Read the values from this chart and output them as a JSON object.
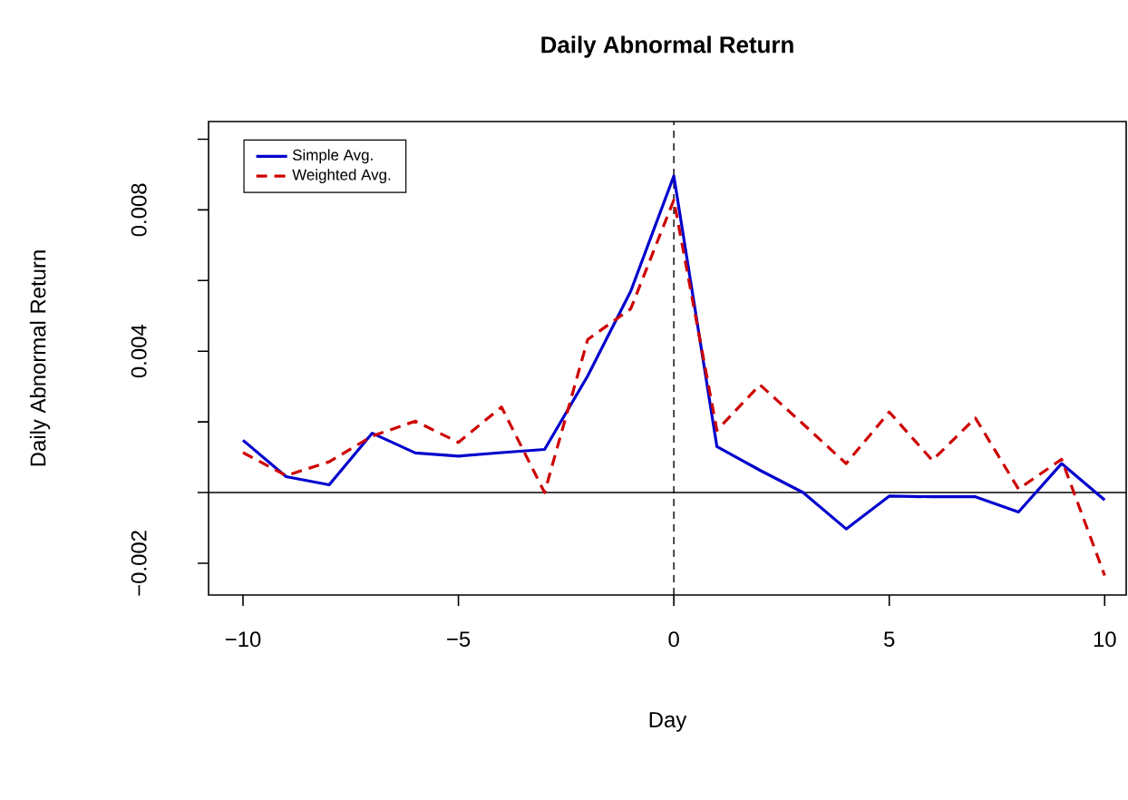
{
  "chart_data": {
    "type": "line",
    "title": "Daily Abnormal Return",
    "xlabel": "Day",
    "ylabel": "Daily Abnormal Return",
    "x": [
      -10,
      -9,
      -8,
      -7,
      -6,
      -5,
      -4,
      -3,
      -2,
      -1,
      0,
      1,
      2,
      3,
      4,
      5,
      6,
      7,
      8,
      9,
      10
    ],
    "series": [
      {
        "name": "Simple Avg.",
        "color": "#0000cd",
        "line_style": "solid",
        "values": [
          0.00148,
          0.00045,
          0.00022,
          0.00168,
          0.00112,
          0.00103,
          0.00113,
          0.00122,
          0.0033,
          0.0057,
          0.00896,
          0.0013,
          0.00063,
          0,
          -0.00103,
          -0.0001,
          -0.00012,
          -0.00012,
          -0.00055,
          0.00082,
          -0.00021
        ]
      },
      {
        "name": "Weighted Avg.",
        "color": "#cd0000",
        "line_style": "dashed",
        "values": [
          0.00113,
          0.00048,
          0.00087,
          0.0016,
          0.00202,
          0.00142,
          0.00242,
          0,
          0.00433,
          0.0052,
          0.00828,
          0.00176,
          0.00305,
          0.00194,
          0.00082,
          0.00228,
          0.00091,
          0.00211,
          0.0001,
          0.00094,
          -0.00235
        ]
      }
    ],
    "xlim": [
      -10.8,
      10.5
    ],
    "ylim": [
      -0.0029,
      0.0105
    ],
    "xticks": [
      {
        "value": -10,
        "label": "−10"
      },
      {
        "value": -5,
        "label": "−5"
      },
      0,
      5,
      10
    ],
    "yticks": [
      {
        "value": -0.002,
        "label": "−0.002"
      },
      {
        "value": 0,
        "label": null
      },
      {
        "value": 0.002,
        "label": null
      },
      {
        "value": 0.004,
        "label": "0.004"
      },
      {
        "value": 0.006,
        "label": null
      },
      {
        "value": 0.008,
        "label": "0.008"
      },
      {
        "value": 0.01,
        "label": null
      }
    ],
    "ref_lines": [
      {
        "axis": "y",
        "value": 0,
        "color": "#000000",
        "line_style": "solid"
      },
      {
        "axis": "x",
        "value": 0,
        "color": "#000000",
        "line_style": "dashed"
      }
    ],
    "legend": "top left",
    "marker": "none",
    "grid": false
  }
}
